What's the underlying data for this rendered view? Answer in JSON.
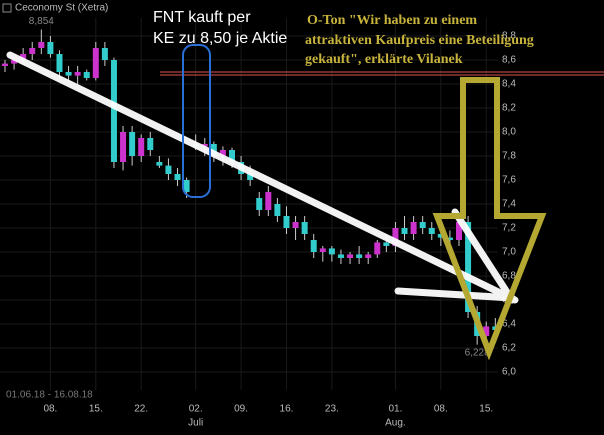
{
  "chart_data": {
    "type": "candlestick",
    "title": "Ceconomy St (Xetra)",
    "period": "01.06.18 - 16.08.18",
    "categories": [
      null,
      null,
      null,
      null,
      null,
      "08.",
      null,
      null,
      null,
      null,
      "15.",
      null,
      null,
      null,
      null,
      "22.",
      null,
      null,
      null,
      null,
      null,
      "02.",
      null,
      null,
      null,
      null,
      "09.",
      null,
      null,
      null,
      null,
      "16.",
      null,
      null,
      null,
      null,
      "23.",
      null,
      null,
      null,
      null,
      null,
      null,
      "01.",
      null,
      null,
      null,
      null,
      "08.",
      null,
      null,
      null,
      null,
      "15.",
      null
    ],
    "months": [
      null,
      null,
      null,
      null,
      null,
      null,
      null,
      null,
      null,
      null,
      null,
      null,
      null,
      null,
      null,
      null,
      null,
      null,
      null,
      null,
      null,
      "Juli",
      null,
      null,
      null,
      null,
      null,
      null,
      null,
      null,
      null,
      null,
      null,
      null,
      null,
      null,
      null,
      null,
      null,
      null,
      null,
      null,
      null,
      "Aug.",
      null,
      null,
      null,
      null,
      null,
      null,
      null,
      null,
      null,
      null,
      null,
      null
    ],
    "open": [
      8.55,
      8.57,
      8.6,
      8.65,
      8.7,
      8.75,
      8.65,
      8.5,
      8.47,
      8.5,
      8.45,
      8.7,
      8.6,
      7.75,
      8.0,
      7.8,
      7.95,
      7.75,
      7.72,
      7.65,
      7.6,
      7.9,
      7.88,
      7.9,
      7.8,
      7.85,
      7.75,
      7.65,
      7.45,
      7.35,
      7.4,
      7.3,
      7.2,
      7.25,
      7.1,
      7.0,
      7.03,
      6.98,
      6.95,
      6.98,
      6.95,
      6.98,
      7.08,
      7.05,
      7.2,
      7.15,
      7.25,
      7.2,
      7.15,
      7.12,
      7.1,
      7.25,
      6.5,
      6.3,
      6.38
    ],
    "high": [
      8.6,
      8.62,
      8.7,
      8.75,
      8.854,
      8.8,
      8.68,
      8.55,
      8.55,
      8.52,
      8.75,
      8.75,
      8.62,
      8.05,
      8.05,
      7.98,
      8.0,
      7.8,
      7.78,
      7.7,
      7.62,
      7.98,
      7.95,
      7.92,
      7.88,
      7.87,
      7.8,
      7.72,
      7.5,
      7.55,
      7.45,
      7.38,
      7.3,
      7.3,
      7.15,
      7.05,
      7.05,
      7.02,
      7.0,
      7.05,
      7.0,
      7.1,
      7.15,
      7.25,
      7.3,
      7.3,
      7.3,
      7.25,
      7.25,
      7.18,
      7.3,
      7.3,
      6.55,
      6.42,
      6.45
    ],
    "low": [
      8.5,
      8.52,
      8.58,
      8.6,
      8.65,
      8.62,
      8.45,
      8.42,
      8.4,
      8.43,
      8.43,
      8.55,
      7.7,
      7.68,
      7.72,
      7.75,
      7.8,
      7.7,
      7.6,
      7.55,
      7.45,
      7.85,
      7.8,
      7.75,
      7.72,
      7.7,
      7.6,
      7.55,
      7.3,
      7.3,
      7.25,
      7.15,
      7.1,
      7.1,
      6.95,
      6.92,
      6.92,
      6.9,
      6.9,
      6.9,
      6.9,
      6.95,
      7.0,
      7.0,
      7.1,
      7.1,
      7.15,
      7.1,
      7.05,
      7.05,
      7.05,
      6.45,
      6.228,
      6.25,
      6.3
    ],
    "close": [
      8.57,
      8.6,
      8.65,
      8.7,
      8.75,
      8.65,
      8.5,
      8.47,
      8.5,
      8.45,
      8.7,
      8.6,
      7.75,
      8.0,
      7.8,
      7.95,
      7.85,
      7.72,
      7.65,
      7.6,
      7.5,
      7.88,
      7.9,
      7.8,
      7.85,
      7.75,
      7.65,
      7.6,
      7.35,
      7.5,
      7.3,
      7.2,
      7.25,
      7.15,
      7.0,
      7.03,
      6.98,
      6.95,
      6.98,
      6.95,
      6.98,
      7.08,
      7.05,
      7.2,
      7.15,
      7.25,
      7.2,
      7.15,
      7.12,
      7.1,
      7.25,
      6.5,
      6.3,
      6.38,
      6.35
    ],
    "up_color": "#cc33cc",
    "down_color": "#33cccc",
    "doji_color": "#dddddd",
    "extremes": [
      {
        "value": 8.854,
        "label": "8,854"
      },
      {
        "value": 6.228,
        "label": "6,228"
      }
    ],
    "hline": 8.5,
    "hline_color": "#d9534f",
    "ylim": [
      5.85,
      8.95
    ],
    "yticks": [
      {
        "value": 6.0,
        "label": "6,0"
      },
      {
        "value": 6.2,
        "label": "6,2"
      },
      {
        "value": 6.4,
        "label": "6,4"
      },
      {
        "value": 6.6,
        "label": "6,6"
      },
      {
        "value": 6.8,
        "label": "6,8"
      },
      {
        "value": 7.0,
        "label": "7,0"
      },
      {
        "value": 7.2,
        "label": "7,2"
      },
      {
        "value": 7.4,
        "label": "7,4"
      },
      {
        "value": 7.6,
        "label": "7,6"
      },
      {
        "value": 7.8,
        "label": "7,8"
      },
      {
        "value": 8.0,
        "label": "8,0"
      },
      {
        "value": 8.2,
        "label": "8,2"
      },
      {
        "value": 8.4,
        "label": "8,4"
      },
      {
        "value": 8.6,
        "label": "8,6"
      },
      {
        "value": 8.8,
        "label": "8,8"
      }
    ],
    "grid": true,
    "annotation_fnt": [
      "FNT kauft per",
      "KE zu 8,50 je Aktie"
    ],
    "annotation_quote": [
      "O-Ton \"Wir haben zu einem",
      "attraktiven Kaufpreis eine Beteiligung",
      "gekauft\", erklärte Vilanek"
    ]
  }
}
